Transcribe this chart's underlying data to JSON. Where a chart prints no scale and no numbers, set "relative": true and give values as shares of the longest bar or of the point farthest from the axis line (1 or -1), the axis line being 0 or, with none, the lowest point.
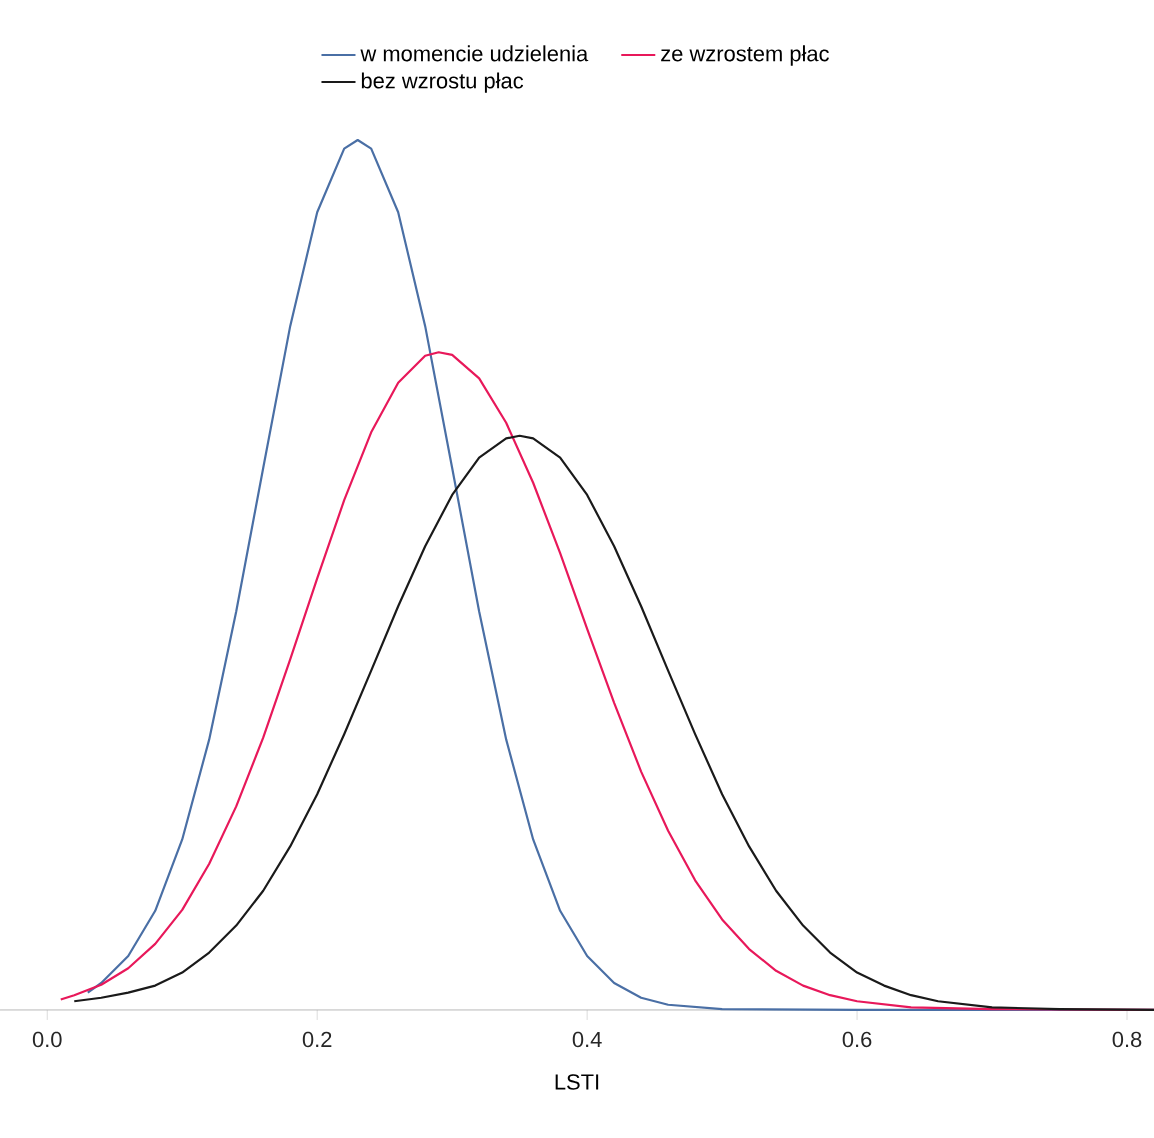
{
  "chart_data": {
    "type": "line",
    "xlabel": "LSTI",
    "relative": true,
    "legend": "top",
    "marker": "none",
    "line_style": "solid",
    "grid": false,
    "xlim": [
      -0.035,
      0.82
    ],
    "xticks": [
      {
        "value": 0,
        "label": "0.0"
      },
      {
        "value": 0.2,
        "label": "0.2"
      },
      {
        "value": 0.4,
        "label": "0.4"
      },
      {
        "value": 0.6,
        "label": "0.6"
      },
      {
        "value": 0.8,
        "label": "0.8"
      }
    ],
    "series": [
      {
        "name": "w momencie udzielenia",
        "color": "#4a6fa5",
        "x": [
          0.03,
          0.04,
          0.06,
          0.08,
          0.1,
          0.12,
          0.14,
          0.16,
          0.18,
          0.2,
          0.22,
          0.23,
          0.24,
          0.26,
          0.28,
          0.3,
          0.32,
          0.34,
          0.36,
          0.38,
          0.4,
          0.42,
          0.44,
          0.46,
          0.5,
          0.6,
          0.82
        ],
        "values": [
          0.02,
          0.031,
          0.062,
          0.114,
          0.196,
          0.311,
          0.458,
          0.623,
          0.786,
          0.917,
          0.99,
          1,
          0.99,
          0.917,
          0.786,
          0.623,
          0.458,
          0.311,
          0.196,
          0.114,
          0.062,
          0.031,
          0.014,
          0.006,
          0.001,
          0,
          0
        ]
      },
      {
        "name": "ze wzrostem płac",
        "color": "#e8185a",
        "x": [
          0.01,
          0.02,
          0.04,
          0.06,
          0.08,
          0.1,
          0.12,
          0.14,
          0.16,
          0.18,
          0.2,
          0.22,
          0.24,
          0.26,
          0.28,
          0.29,
          0.3,
          0.32,
          0.34,
          0.36,
          0.38,
          0.4,
          0.42,
          0.44,
          0.46,
          0.48,
          0.5,
          0.52,
          0.54,
          0.56,
          0.58,
          0.6,
          0.64,
          0.7,
          0.82
        ],
        "values": [
          0.012,
          0.017,
          0.029,
          0.048,
          0.076,
          0.115,
          0.168,
          0.234,
          0.313,
          0.403,
          0.496,
          0.586,
          0.664,
          0.721,
          0.752,
          0.756,
          0.753,
          0.726,
          0.675,
          0.606,
          0.525,
          0.438,
          0.353,
          0.274,
          0.206,
          0.149,
          0.104,
          0.07,
          0.045,
          0.028,
          0.017,
          0.01,
          0.003,
          0.001,
          0
        ]
      },
      {
        "name": "bez wzrostu płac",
        "color": "#1a1a1a",
        "x": [
          0.02,
          0.04,
          0.06,
          0.08,
          0.1,
          0.12,
          0.14,
          0.16,
          0.18,
          0.2,
          0.22,
          0.24,
          0.26,
          0.28,
          0.3,
          0.32,
          0.34,
          0.35,
          0.36,
          0.38,
          0.4,
          0.42,
          0.44,
          0.46,
          0.48,
          0.5,
          0.52,
          0.54,
          0.56,
          0.58,
          0.6,
          0.62,
          0.64,
          0.66,
          0.7,
          0.75,
          0.82
        ],
        "values": [
          0.01,
          0.014,
          0.02,
          0.028,
          0.043,
          0.066,
          0.097,
          0.137,
          0.188,
          0.248,
          0.317,
          0.39,
          0.464,
          0.533,
          0.592,
          0.635,
          0.657,
          0.66,
          0.657,
          0.635,
          0.592,
          0.533,
          0.464,
          0.39,
          0.317,
          0.248,
          0.188,
          0.137,
          0.097,
          0.066,
          0.043,
          0.028,
          0.017,
          0.01,
          0.003,
          0.001,
          0
        ]
      }
    ]
  }
}
